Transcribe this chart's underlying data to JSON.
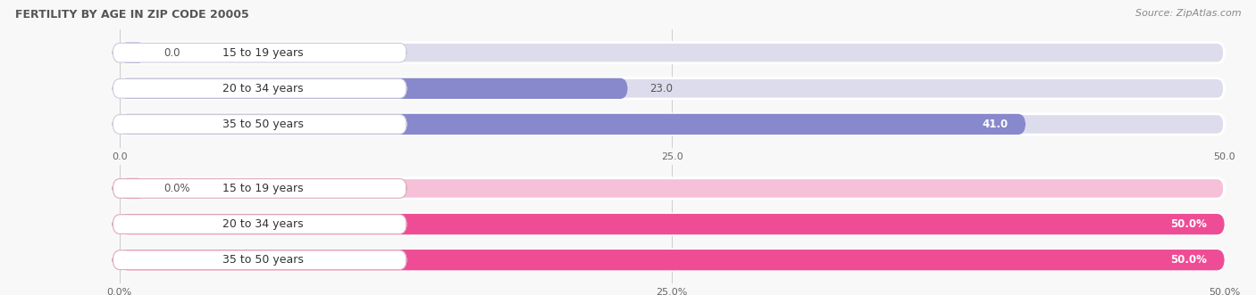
{
  "title": "FERTILITY BY AGE IN ZIP CODE 20005",
  "source": "Source: ZipAtlas.com",
  "top_chart": {
    "categories": [
      "15 to 19 years",
      "20 to 34 years",
      "35 to 50 years"
    ],
    "values": [
      0.0,
      23.0,
      41.0
    ],
    "xlim": [
      0,
      50
    ],
    "xticks": [
      0.0,
      25.0,
      50.0
    ],
    "bar_color": "#8888cc",
    "bar_bg_color": "#dcdcec",
    "label_bg_color": "#f0f0f8",
    "bar_border_color": "#ccccdd"
  },
  "bottom_chart": {
    "categories": [
      "15 to 19 years",
      "20 to 34 years",
      "35 to 50 years"
    ],
    "values": [
      0.0,
      50.0,
      50.0
    ],
    "xlim": [
      0,
      50
    ],
    "xticks": [
      0.0,
      25.0,
      50.0
    ],
    "bar_color": "#ee4d96",
    "bar_bg_color": "#f5c0d8",
    "label_bg_color": "#fce8f0",
    "bar_border_color": "#ddaabb"
  },
  "title_fontsize": 9,
  "source_fontsize": 8,
  "label_fontsize": 9,
  "value_fontsize": 8.5,
  "tick_fontsize": 8,
  "fig_width": 14.06,
  "fig_height": 3.31,
  "fig_bg_color": "#f8f8f8"
}
